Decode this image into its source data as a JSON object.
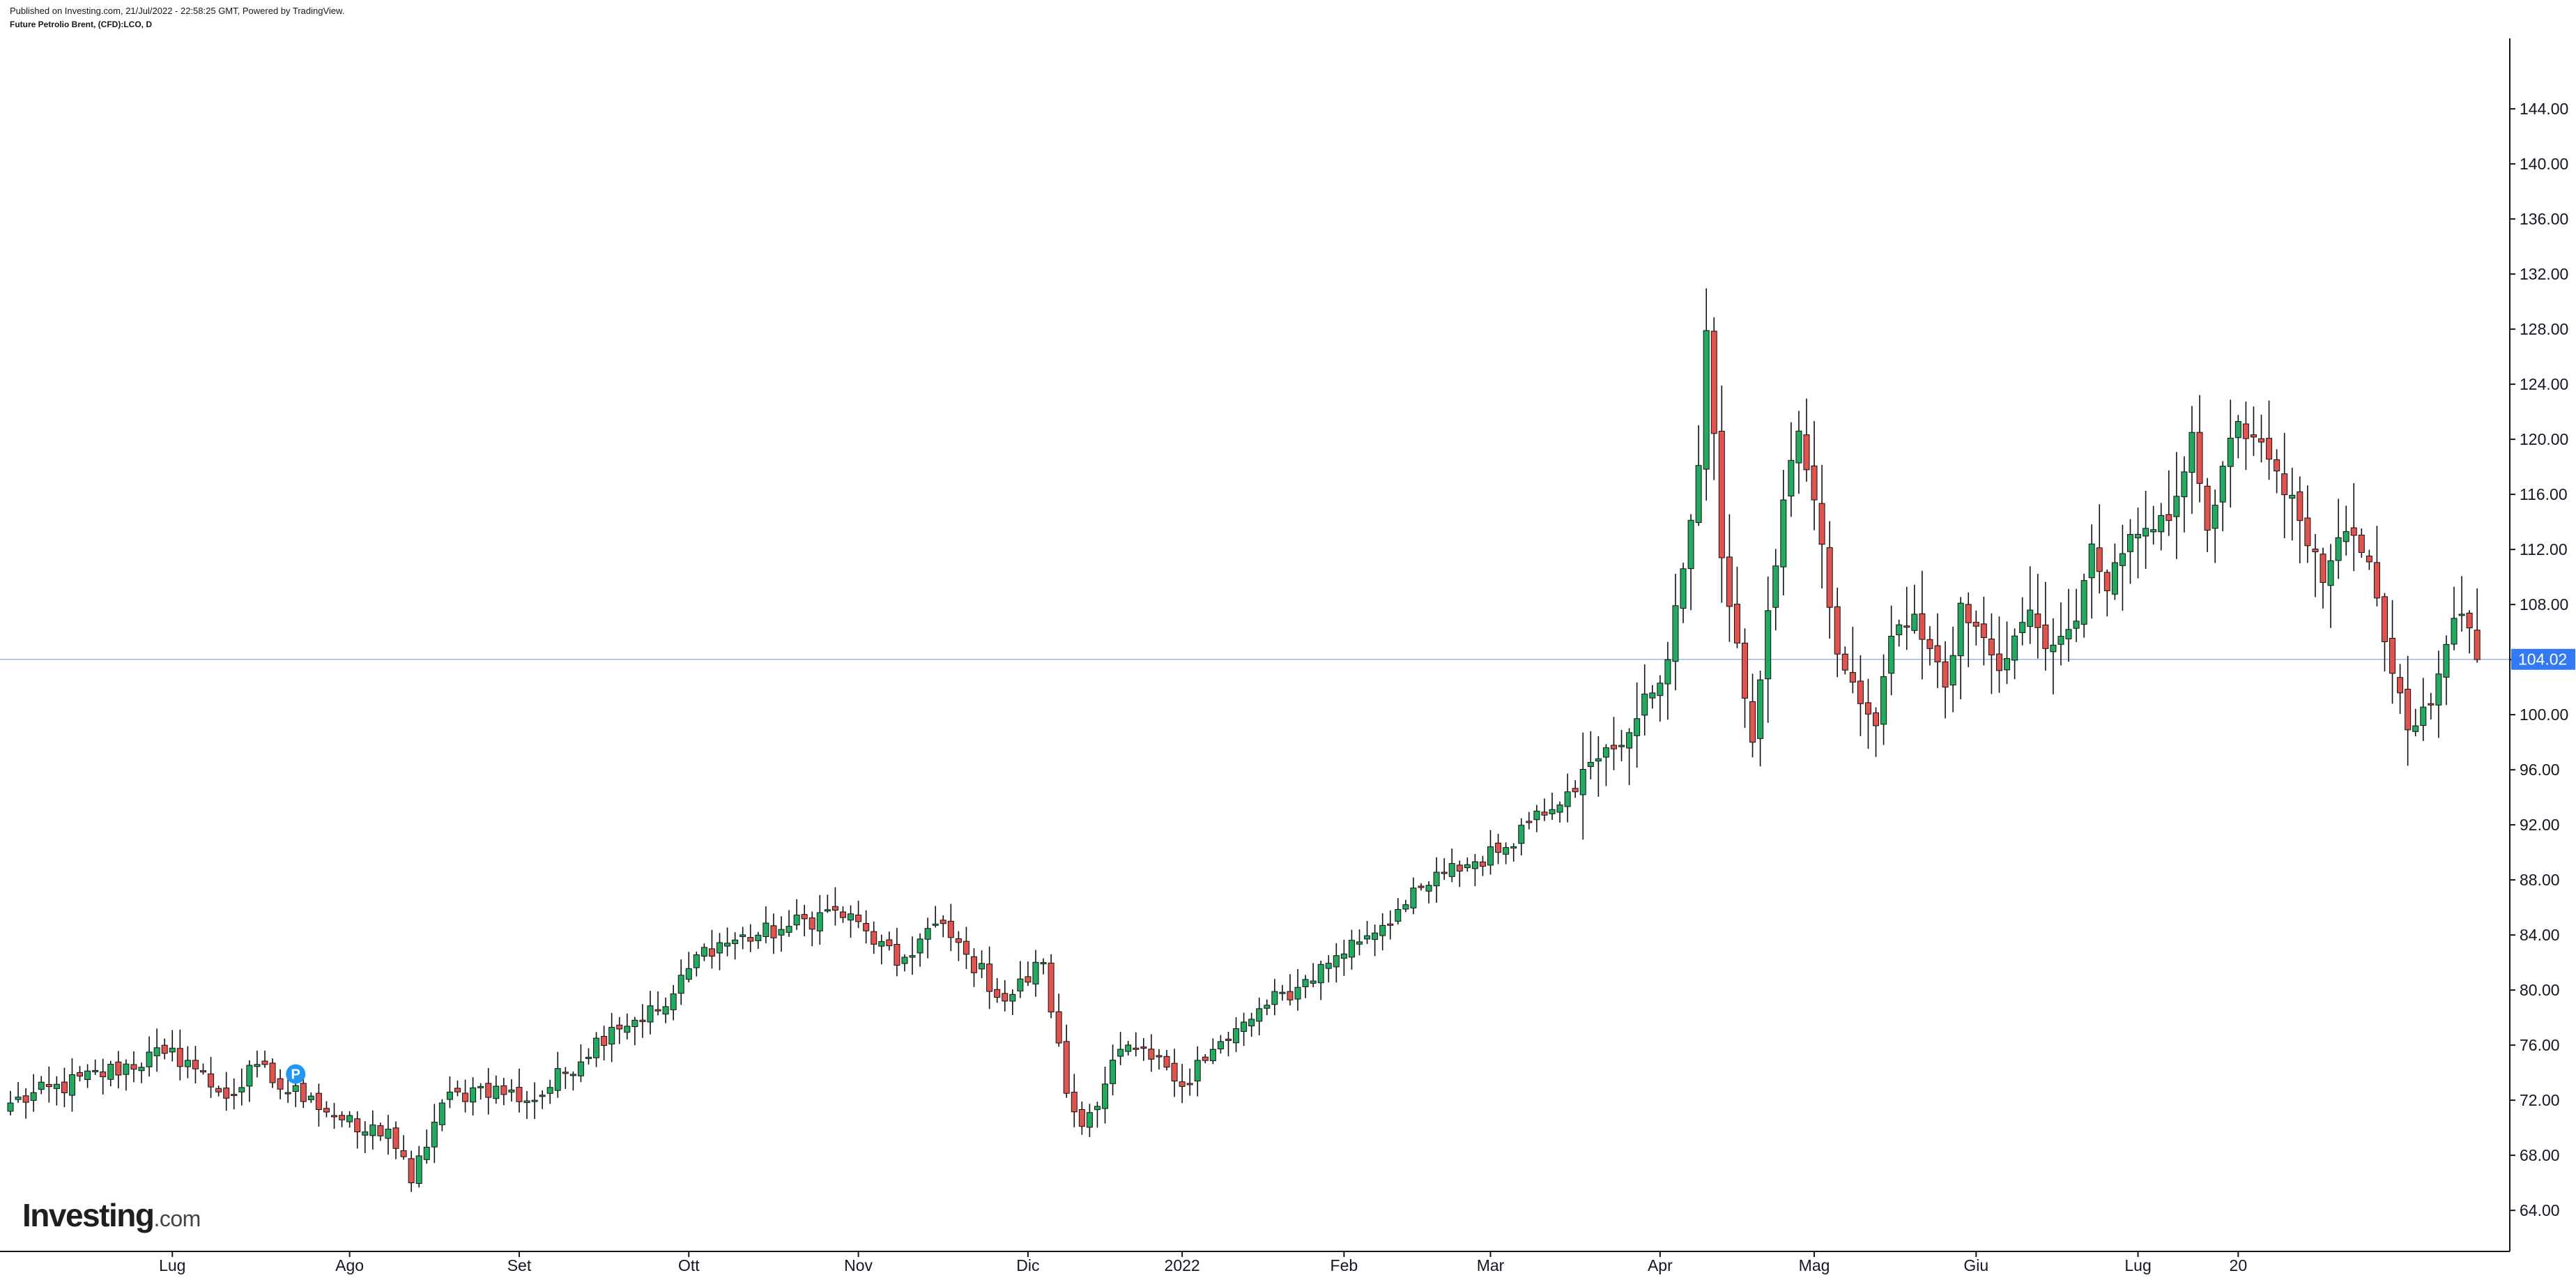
{
  "header": {
    "published": "Published on Investing.com, 21/Jul/2022 - 22:58:25 GMT, Powered by TradingView.",
    "symbol": "Future Petrolio Brent, (CFD):LCO, D"
  },
  "logo": {
    "brand": "Investing",
    "domain": ".com"
  },
  "colors": {
    "up": "#22ab60",
    "down": "#e0534f",
    "wick": "#111111",
    "price_line": "#9fb4d8",
    "price_label_bg": "#3179f5",
    "marker": "#2196f3"
  },
  "chart_data": {
    "type": "candlestick",
    "title": "Future Petrolio Brent, (CFD):LCO, D",
    "x_ticks": [
      "Lug",
      "Ago",
      "Set",
      "Ott",
      "Nov",
      "Dic",
      "2022",
      "Feb",
      "Mar",
      "Apr",
      "Mag",
      "Giu",
      "Lug",
      "20"
    ],
    "y_ticks": [
      "64.00",
      "68.00",
      "72.00",
      "76.00",
      "80.00",
      "84.00",
      "88.00",
      "92.00",
      "96.00",
      "100.00",
      "104.00",
      "108.00",
      "112.00",
      "116.00",
      "120.00",
      "124.00",
      "128.00",
      "132.00",
      "136.00",
      "140.00",
      "144.00"
    ],
    "ylim": [
      61.5,
      148
    ],
    "last_price": 104.02,
    "last_price_label": "104.02",
    "marker_label": "P",
    "marker_price": 73.9,
    "grid": false,
    "legend": "none",
    "close_anchors": [
      [
        0,
        71.8
      ],
      [
        20,
        75.4
      ],
      [
        23,
        74.9
      ],
      [
        27,
        72.6
      ],
      [
        29,
        72.4
      ],
      [
        32,
        74.6
      ],
      [
        35,
        72.8
      ],
      [
        39,
        72.3
      ],
      [
        45,
        69.7
      ],
      [
        49,
        69.9
      ],
      [
        52,
        66.0
      ],
      [
        56,
        71.8
      ],
      [
        61,
        73.0
      ],
      [
        68,
        72.0
      ],
      [
        78,
        77.3
      ],
      [
        85,
        78.8
      ],
      [
        90,
        83.1
      ],
      [
        100,
        84.4
      ],
      [
        107,
        85.8
      ],
      [
        111,
        84.3
      ],
      [
        115,
        81.8
      ],
      [
        120,
        84.8
      ],
      [
        124,
        82.6
      ],
      [
        129,
        79.2
      ],
      [
        134,
        82.0
      ],
      [
        137,
        72.5
      ],
      [
        139,
        70.1
      ],
      [
        144,
        75.7
      ],
      [
        150,
        74.4
      ],
      [
        152,
        73.0
      ],
      [
        154,
        74.9
      ],
      [
        158,
        76.4
      ],
      [
        163,
        78.9
      ],
      [
        167,
        80.2
      ],
      [
        172,
        82.5
      ],
      [
        181,
        86.2
      ],
      [
        186,
        88.5
      ],
      [
        193,
        90.0
      ],
      [
        198,
        93.0
      ],
      [
        202,
        94.4
      ],
      [
        206,
        96.8
      ],
      [
        210,
        98.7
      ],
      [
        215,
        104.0
      ],
      [
        217,
        110.6
      ],
      [
        219,
        118.1
      ],
      [
        220,
        127.9
      ],
      [
        222,
        111.4
      ],
      [
        224,
        105.2
      ],
      [
        226,
        98.0
      ],
      [
        230,
        115.6
      ],
      [
        232,
        120.6
      ],
      [
        234,
        115.6
      ],
      [
        237,
        104.4
      ],
      [
        240,
        100.8
      ],
      [
        242,
        99.2
      ],
      [
        244,
        105.7
      ],
      [
        247,
        107.3
      ],
      [
        249,
        104.8
      ],
      [
        251,
        102.0
      ],
      [
        253,
        108.1
      ],
      [
        256,
        105.6
      ],
      [
        258,
        103.2
      ],
      [
        262,
        107.6
      ],
      [
        264,
        104.8
      ],
      [
        268,
        106.8
      ],
      [
        270,
        112.4
      ],
      [
        272,
        109.0
      ],
      [
        274,
        111.7
      ],
      [
        276,
        113.1
      ],
      [
        280,
        114.1
      ],
      [
        283,
        120.5
      ],
      [
        285,
        113.4
      ],
      [
        289,
        121.3
      ],
      [
        292,
        119.8
      ],
      [
        294,
        117.7
      ],
      [
        297,
        114.1
      ],
      [
        300,
        109.6
      ],
      [
        303,
        113.3
      ],
      [
        306,
        111.1
      ],
      [
        308,
        105.3
      ],
      [
        309,
        103.0
      ],
      [
        311,
        98.9
      ],
      [
        314,
        100.7
      ],
      [
        317,
        107.0
      ],
      [
        318,
        107.3
      ],
      [
        319,
        106.3
      ],
      [
        320,
        104.0
      ]
    ]
  }
}
